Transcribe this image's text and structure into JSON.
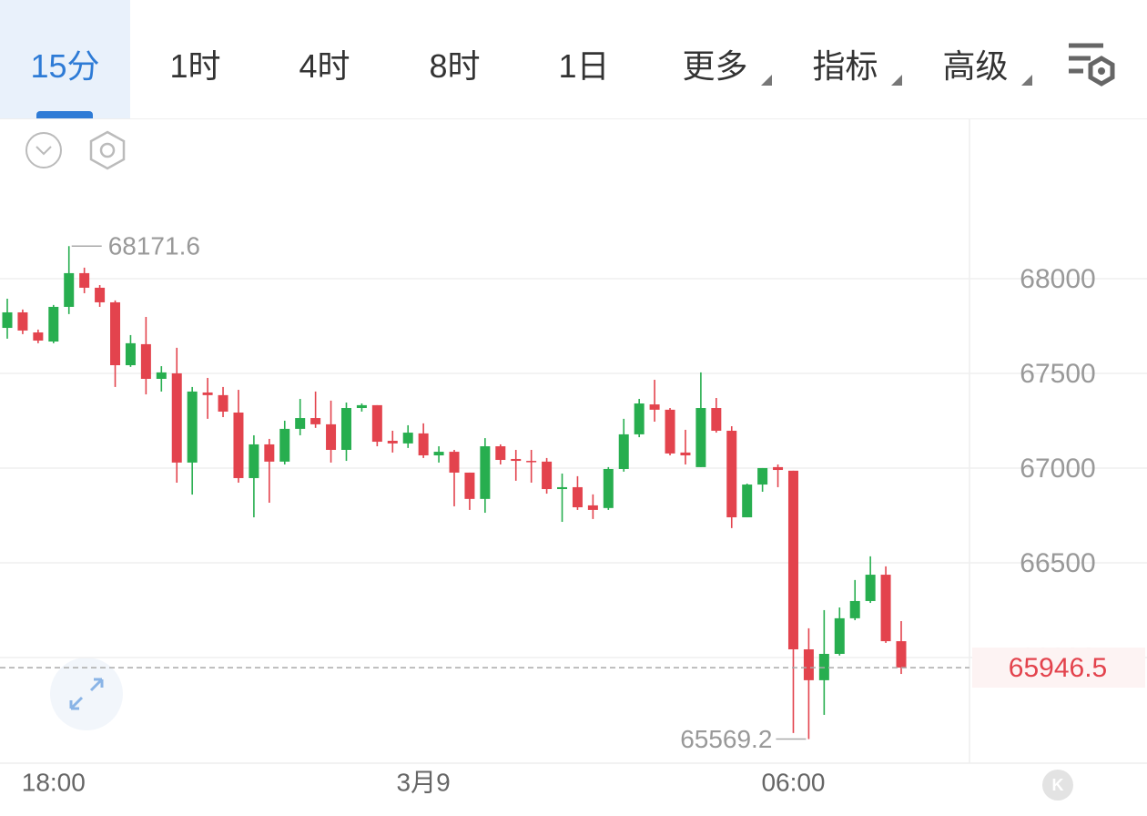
{
  "toolbar": {
    "tabs": [
      "15分",
      "1时",
      "4时",
      "8时",
      "1日",
      "更多",
      "指标",
      "高级"
    ]
  },
  "chart_data": {
    "type": "candlestick",
    "categories": [
      null,
      null,
      null,
      "18:00",
      null,
      null,
      null,
      null,
      null,
      null,
      null,
      null,
      null,
      null,
      null,
      null,
      null,
      null,
      null,
      null,
      null,
      null,
      null,
      null,
      null,
      null,
      null,
      "3月9",
      null,
      null,
      null,
      null,
      null,
      null,
      null,
      null,
      null,
      null,
      null,
      null,
      null,
      null,
      null,
      null,
      null,
      null,
      null,
      null,
      null,
      null,
      null,
      "06:00",
      null,
      null,
      null,
      null,
      null,
      null,
      null
    ],
    "open": [
      67740,
      67822,
      67716,
      67668,
      67851,
      68029,
      67952,
      67875,
      67543,
      67654,
      67471,
      67500,
      67029,
      67399,
      67385,
      67293,
      66947,
      67125,
      67034,
      67207,
      67264,
      67231,
      67096,
      67317,
      67332,
      67144,
      67130,
      67183,
      67067,
      67086,
      66976,
      66837,
      67115,
      67048,
      67038,
      67034,
      66889,
      66899,
      66803,
      66789,
      66995,
      67178,
      67336,
      67308,
      67082,
      67005,
      67317,
      67197,
      66740,
      66913,
      67005,
      66986,
      66043,
      65880,
      66019,
      66207,
      66298,
      66437,
      66086
    ],
    "high": [
      67894,
      67837,
      67731,
      67861,
      68171.6,
      68058,
      67966,
      67885,
      67702,
      67798,
      67538,
      67635,
      67428,
      67476,
      67428,
      67413,
      67173,
      67154,
      67250,
      67365,
      67404,
      67356,
      67346,
      67341,
      67332,
      67197,
      67226,
      67236,
      67115,
      67096,
      66976,
      67158,
      67125,
      67096,
      67096,
      67053,
      66971,
      66957,
      66861,
      67005,
      67260,
      67365,
      67466,
      67317,
      67202,
      67505,
      67370,
      67221,
      66918,
      67000,
      67019,
      66986,
      66154,
      66250,
      66264,
      66409,
      66534,
      66481,
      66192
    ],
    "low": [
      67683,
      67707,
      67659,
      67659,
      67813,
      67923,
      67851,
      67428,
      67534,
      67389,
      67404,
      66923,
      66860,
      67260,
      67269,
      66923,
      66740,
      66817,
      67019,
      67173,
      67212,
      67029,
      67038,
      67298,
      67115,
      67082,
      67106,
      67053,
      67029,
      66798,
      66779,
      66764,
      67019,
      66933,
      66923,
      66865,
      66716,
      66779,
      66731,
      66779,
      66981,
      67163,
      67245,
      67067,
      67019,
      67005,
      67187,
      66683,
      66740,
      66875,
      66899,
      65601,
      65569.2,
      65697,
      66010,
      66197,
      66288,
      66077,
      65913
    ],
    "close": [
      67822,
      67726,
      67673,
      67851,
      68029,
      67952,
      67875,
      67543,
      67659,
      67471,
      67505,
      67029,
      67404,
      67385,
      67298,
      66947,
      67125,
      67034,
      67207,
      67264,
      67231,
      67096,
      67317,
      67332,
      67139,
      67130,
      67187,
      67067,
      67086,
      66976,
      66837,
      67115,
      67043,
      67038,
      67034,
      66889,
      66899,
      66793,
      66779,
      66995,
      67178,
      67341,
      67308,
      67077,
      67067,
      67317,
      67197,
      66740,
      66913,
      67000,
      66990,
      66043,
      65880,
      66019,
      66207,
      66298,
      66437,
      66086,
      65946.5
    ],
    "up_color": "#27ae4f",
    "down_color": "#e3434d",
    "ylim": [
      65442,
      68846
    ],
    "yticks": [
      66000,
      66500,
      67000,
      67500,
      68000
    ],
    "grid": true
  }
}
